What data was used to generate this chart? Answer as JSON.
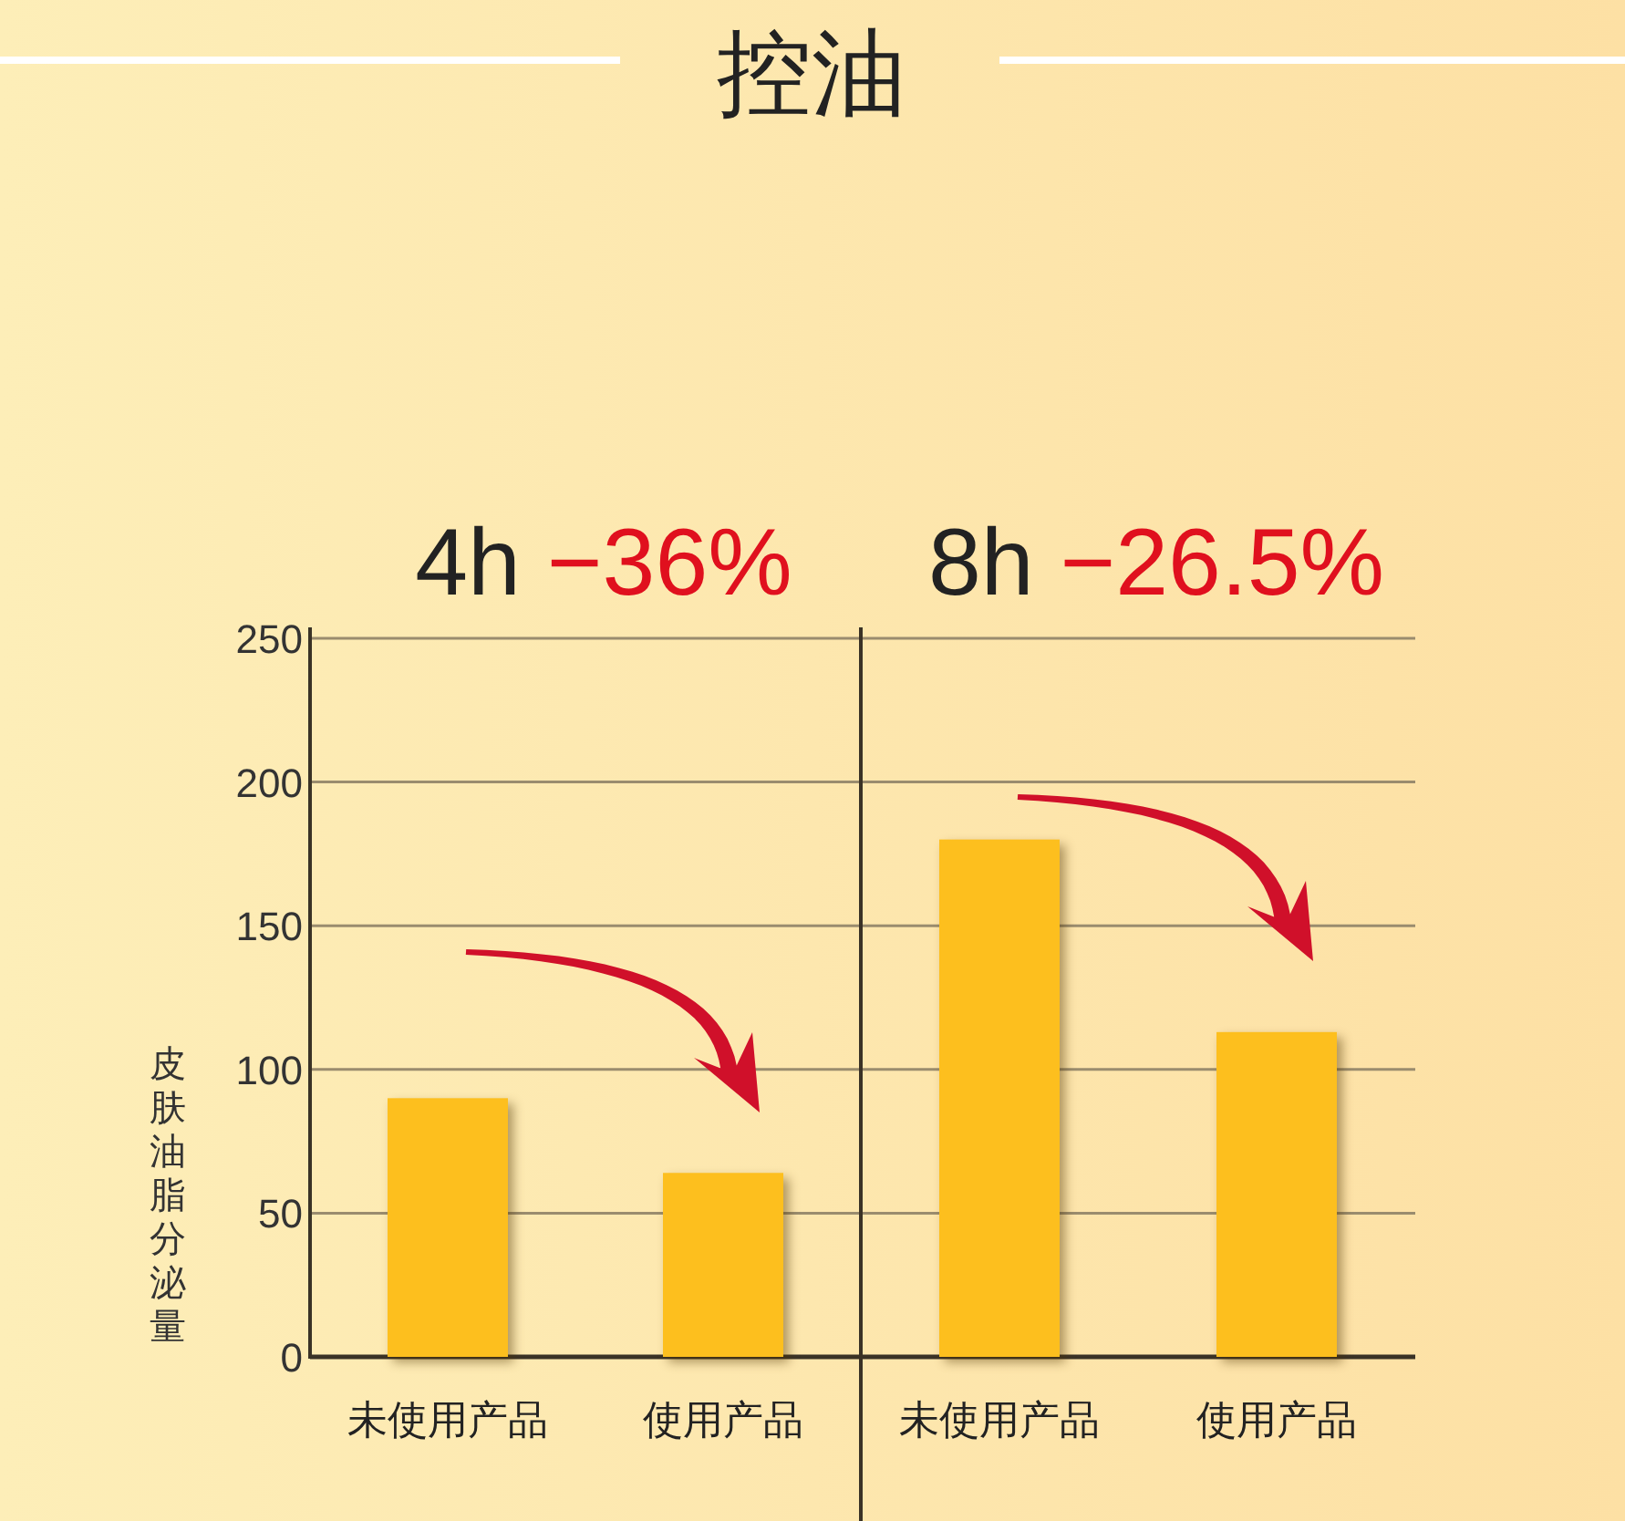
{
  "chart_data": [
    {
      "type": "bar",
      "title": "4h −36%",
      "categories": [
        "未使用产品",
        "使用产品"
      ],
      "values": [
        90,
        64
      ],
      "color": "#fdbf1e",
      "ylabel": "皮肤油脂分泌量",
      "ylim": [
        0,
        250
      ],
      "yticks": [
        0,
        50,
        100,
        150,
        200,
        250
      ],
      "grid": "y",
      "annotations": [
        "控油"
      ]
    },
    {
      "type": "bar",
      "title": "8h −26.5%",
      "categories": [
        "未使用产品",
        "使用产品"
      ],
      "values": [
        180,
        113
      ],
      "color": "#fdbf1e",
      "ylim": [
        0,
        250
      ],
      "yticks": [
        0,
        50,
        100,
        150,
        200,
        250
      ],
      "grid": "y",
      "tick_labels": "x"
    }
  ]
}
